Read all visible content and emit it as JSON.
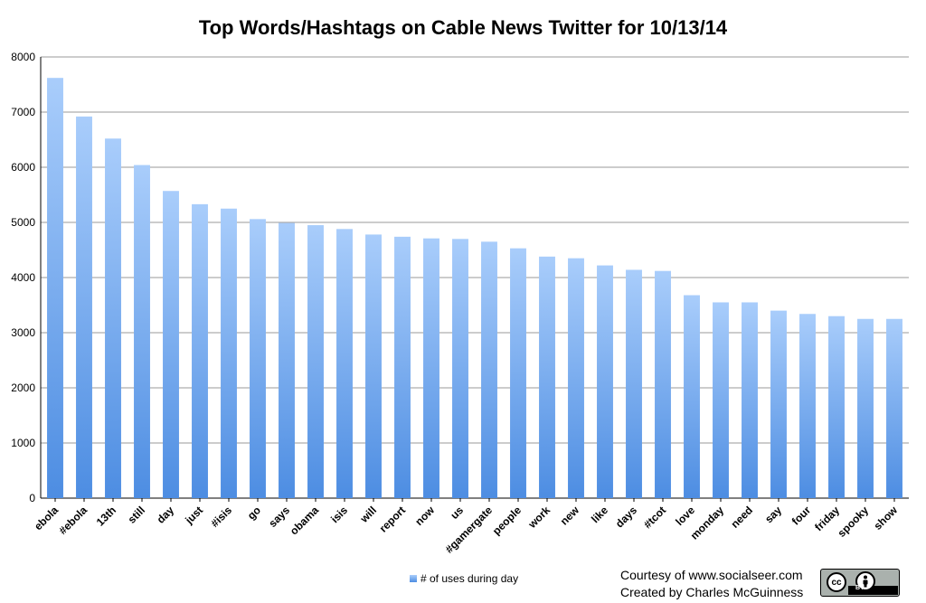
{
  "chart_data": {
    "type": "bar",
    "title": "Top Words/Hashtags on Cable News Twitter for 10/13/14",
    "xlabel": "",
    "ylabel": "",
    "ylim": [
      0,
      8000
    ],
    "yticks": [
      0,
      1000,
      2000,
      3000,
      4000,
      5000,
      6000,
      7000,
      8000
    ],
    "grid": true,
    "legend_position": "bottom-center",
    "categories": [
      "ebola",
      "#ebola",
      "13th",
      "still",
      "day",
      "just",
      "#isis",
      "go",
      "says",
      "obama",
      "isis",
      "will",
      "report",
      "now",
      "us",
      "#gamergate",
      "people",
      "work",
      "new",
      "like",
      "days",
      "#tcot",
      "love",
      "monday",
      "need",
      "say",
      "four",
      "friday",
      "spooky",
      "show"
    ],
    "series": [
      {
        "name": "# of uses during day",
        "values": [
          7620,
          6920,
          6520,
          6040,
          5570,
          5330,
          5250,
          5060,
          4990,
          4950,
          4880,
          4780,
          4740,
          4710,
          4700,
          4650,
          4530,
          4380,
          4350,
          4220,
          4140,
          4120,
          3680,
          3550,
          3550,
          3400,
          3340,
          3300,
          3250,
          3250
        ]
      }
    ],
    "bar_color_top": "#a9cdfb",
    "bar_color_bottom": "#4d8de2"
  },
  "footer": {
    "credit_line1": "Courtesy of www.socialseer.com",
    "credit_line2": "Created by Charles McGuinness",
    "license_badge_text": "BY",
    "license_cc_text": "cc"
  }
}
